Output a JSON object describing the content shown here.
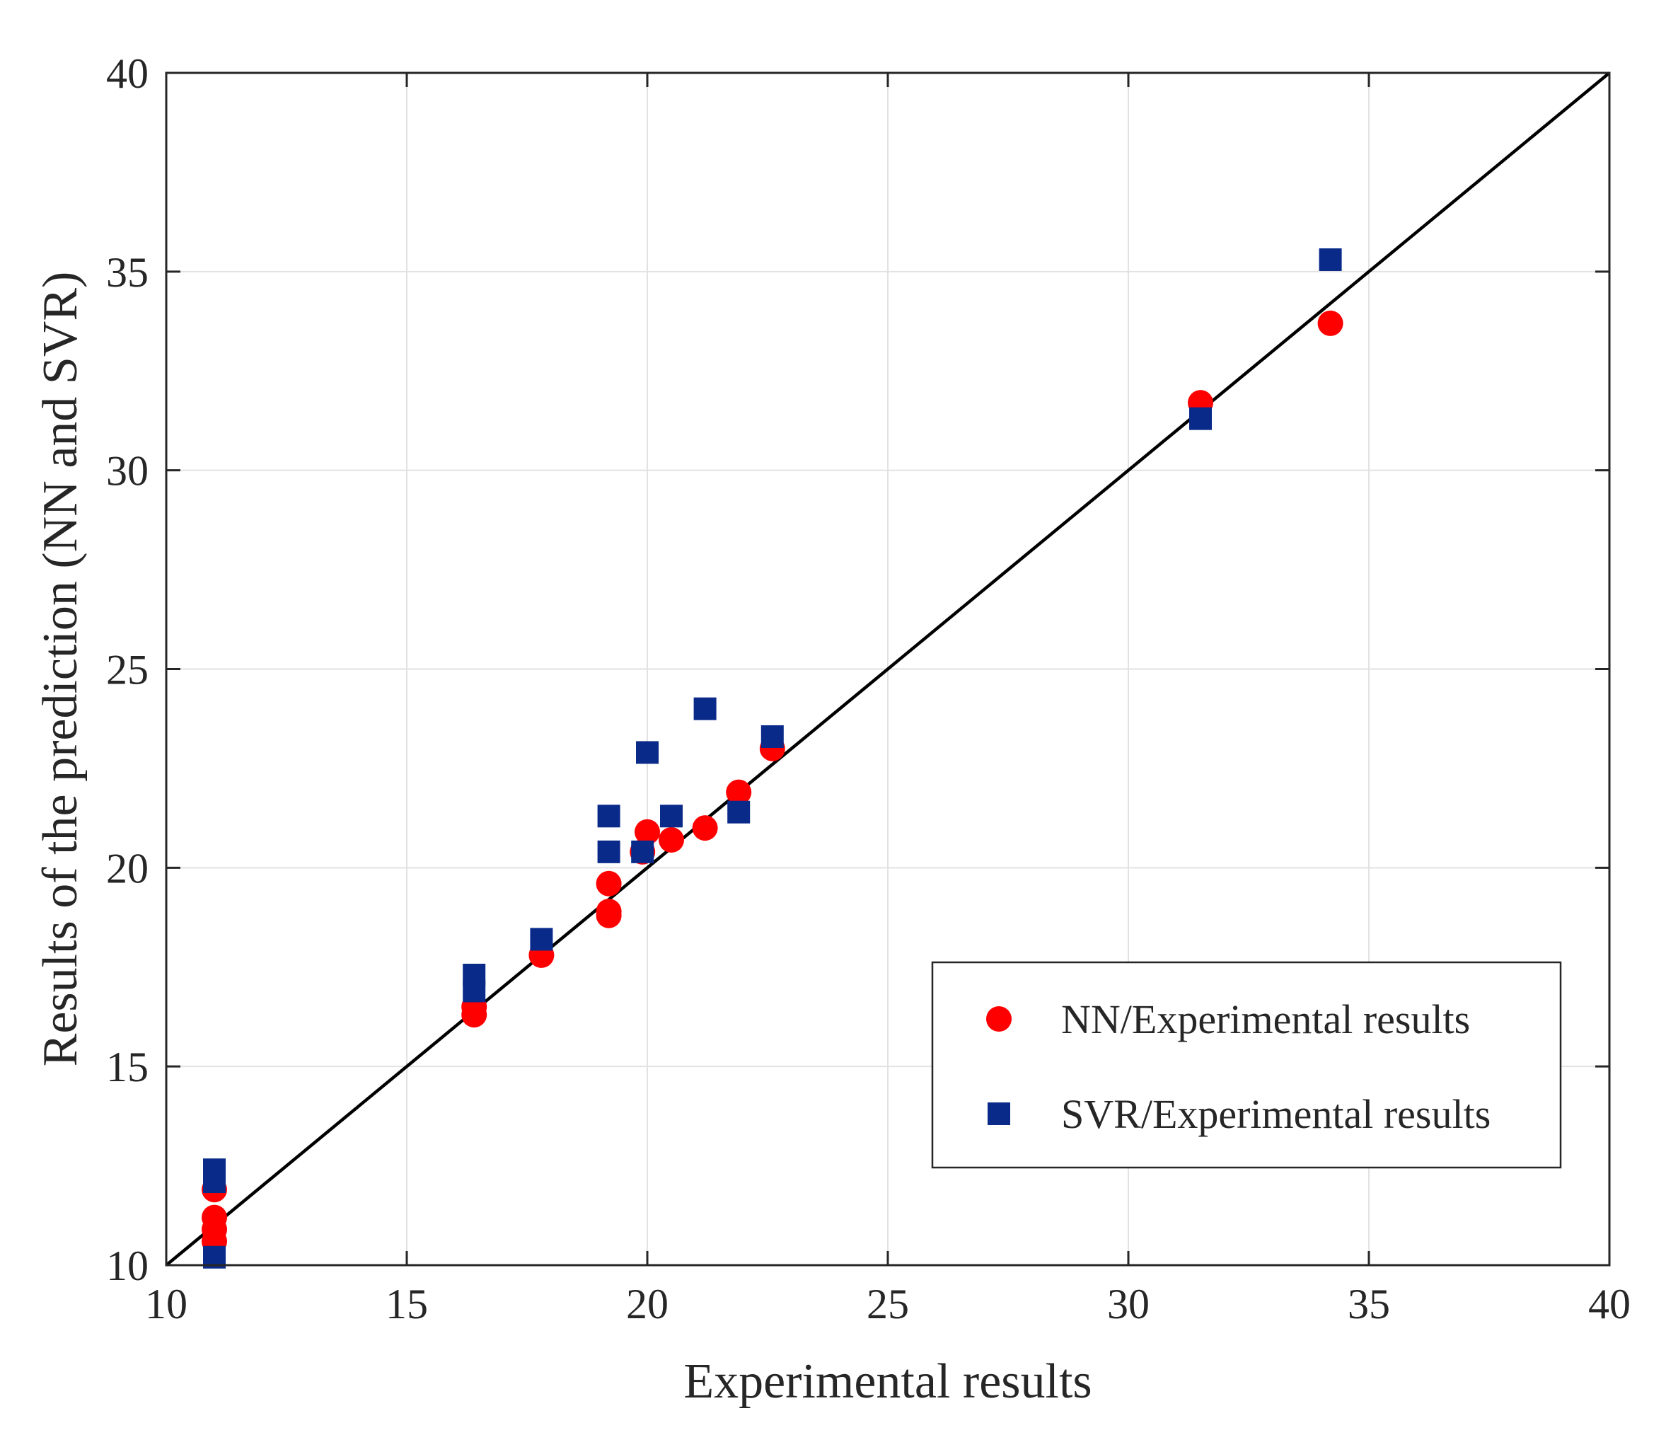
{
  "chart_data": {
    "type": "scatter",
    "xlabel": "Experimental results",
    "ylabel": "Results of the prediction (NN and SVR)",
    "xlim": [
      10,
      40
    ],
    "ylim": [
      10,
      40
    ],
    "xticks": [
      "10",
      "15",
      "20",
      "25",
      "30",
      "35",
      "40"
    ],
    "yticks": [
      "10",
      "15",
      "20",
      "25",
      "30",
      "35",
      "40"
    ],
    "grid": true,
    "legend_position": "bottom-right",
    "reference_line": {
      "from": [
        10,
        10
      ],
      "to": [
        40,
        40
      ],
      "color": "#000000"
    },
    "series": [
      {
        "name": "NN/Experimental results",
        "marker": "circle",
        "color": "#ff0000",
        "points": [
          [
            11.0,
            11.9
          ],
          [
            11.0,
            11.2
          ],
          [
            11.0,
            10.9
          ],
          [
            11.0,
            10.6
          ],
          [
            16.4,
            16.5
          ],
          [
            16.4,
            16.3
          ],
          [
            17.8,
            17.8
          ],
          [
            19.2,
            19.6
          ],
          [
            19.2,
            18.9
          ],
          [
            19.2,
            18.8
          ],
          [
            19.9,
            20.4
          ],
          [
            20.0,
            20.9
          ],
          [
            20.5,
            20.7
          ],
          [
            21.2,
            21.0
          ],
          [
            21.9,
            21.9
          ],
          [
            22.6,
            23.0
          ],
          [
            31.5,
            31.7
          ],
          [
            34.2,
            33.7
          ]
        ]
      },
      {
        "name": "SVR/Experimental results",
        "marker": "square",
        "color": "#0a2a8a",
        "points": [
          [
            11.0,
            12.4
          ],
          [
            11.0,
            12.1
          ],
          [
            11.0,
            10.2
          ],
          [
            16.4,
            17.3
          ],
          [
            16.4,
            16.9
          ],
          [
            17.8,
            18.2
          ],
          [
            19.2,
            21.3
          ],
          [
            19.2,
            20.4
          ],
          [
            19.9,
            20.4
          ],
          [
            20.0,
            22.9
          ],
          [
            20.5,
            21.3
          ],
          [
            21.2,
            24.0
          ],
          [
            21.9,
            21.4
          ],
          [
            22.6,
            23.3
          ],
          [
            31.5,
            31.3
          ],
          [
            34.2,
            35.3
          ]
        ]
      }
    ]
  }
}
